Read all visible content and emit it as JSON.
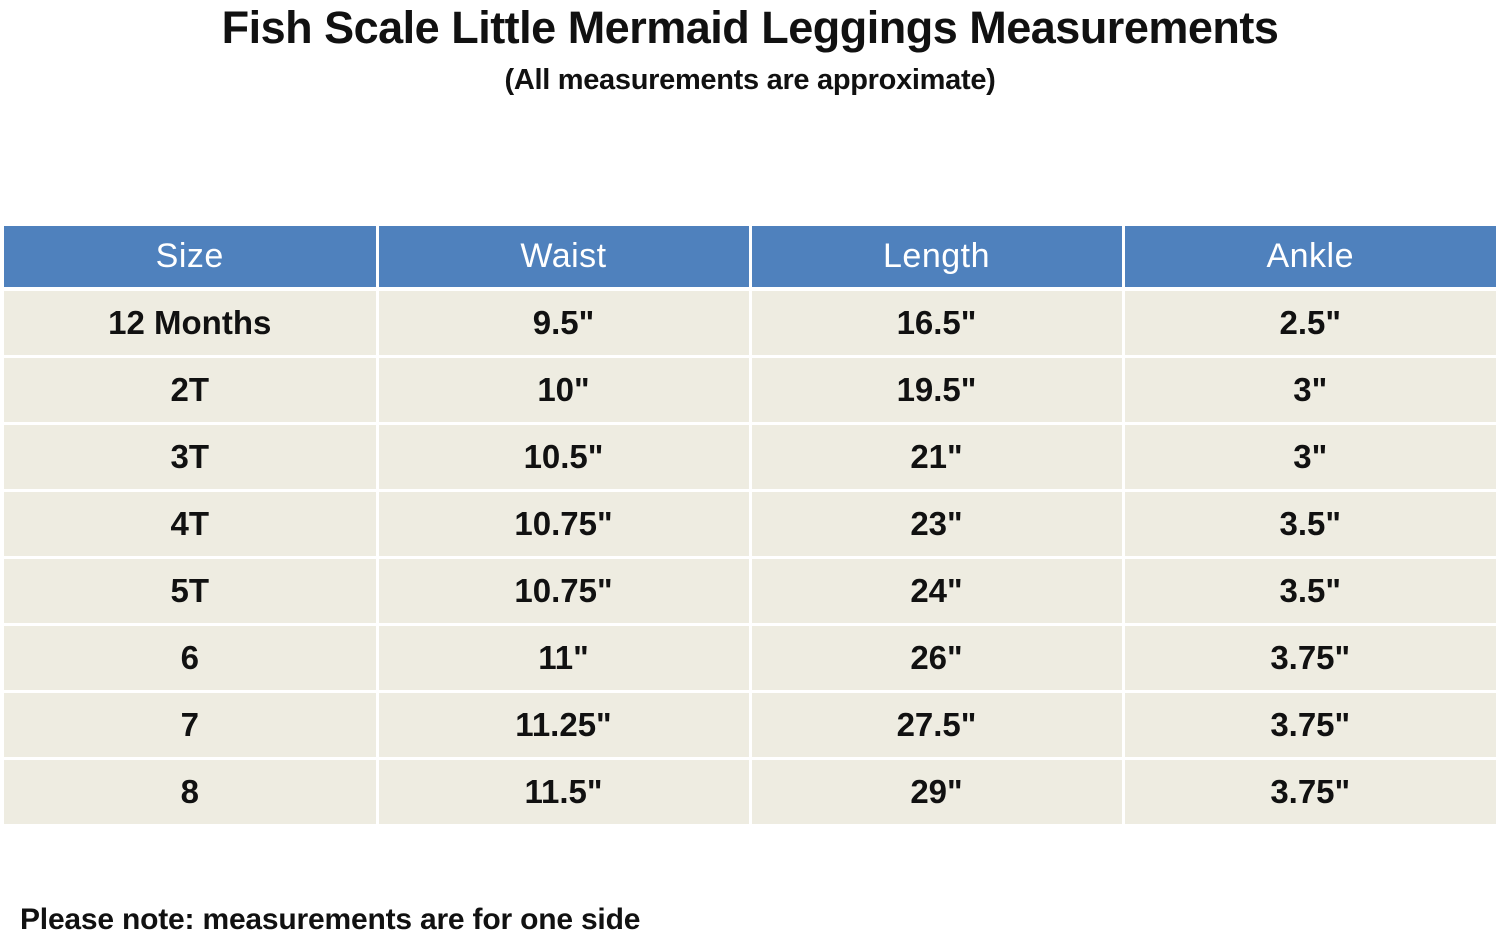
{
  "title": "Fish Scale Little Mermaid Leggings Measurements",
  "subtitle": "(All measurements are approximate)",
  "table": {
    "headers": [
      "Size",
      "Waist",
      "Length",
      "Ankle"
    ],
    "rows": [
      [
        "12 Months",
        "9.5\"",
        "16.5\"",
        "2.5\""
      ],
      [
        "2T",
        "10\"",
        "19.5\"",
        "3\""
      ],
      [
        "3T",
        "10.5\"",
        "21\"",
        "3\""
      ],
      [
        "4T",
        "10.75\"",
        "23\"",
        "3.5\""
      ],
      [
        "5T",
        "10.75\"",
        "24\"",
        "3.5\""
      ],
      [
        "6",
        "11\"",
        "26\"",
        "3.75\""
      ],
      [
        "7",
        "11.25\"",
        "27.5\"",
        "3.75\""
      ],
      [
        "8",
        "11.5\"",
        "29\"",
        "3.75\""
      ]
    ]
  },
  "note": "Please note: measurements are for one side",
  "colors": {
    "header_bg": "#4f81bd",
    "header_text": "#ffffff",
    "row_bg": "#eeece1"
  }
}
